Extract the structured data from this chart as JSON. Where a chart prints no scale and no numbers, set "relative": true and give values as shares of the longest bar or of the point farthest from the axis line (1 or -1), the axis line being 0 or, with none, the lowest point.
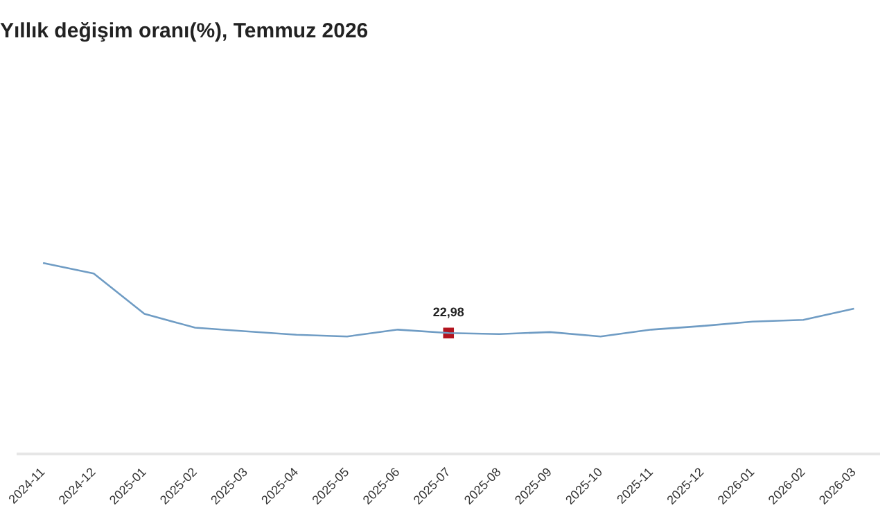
{
  "chart_data": {
    "type": "line",
    "title": "Yıllık değişim oranı(%), Temmuz 2026",
    "relative": true,
    "marker": "none",
    "legend": false,
    "grid": false,
    "categories": [
      "2024-11",
      "2024-12",
      "2025-01",
      "2025-02",
      "2025-03",
      "2025-04",
      "2025-05",
      "2025-06",
      "2025-07",
      "2025-08",
      "2025-09",
      "2025-10",
      "2025-11",
      "2025-12",
      "2026-01",
      "2026-02",
      "2026-03"
    ],
    "series": [
      {
        "color": "#6f9cc4",
        "values": [
          1,
          0.945,
          0.734,
          0.661,
          0.642,
          0.624,
          0.615,
          0.651,
          0.633,
          0.628,
          0.638,
          0.615,
          0.651,
          0.67,
          0.693,
          0.702,
          0.761
        ]
      },
      {
        "type": "scatter",
        "marker": "square",
        "color": "#b3141f",
        "values": [
          null,
          null,
          null,
          null,
          null,
          null,
          null,
          null,
          0.633,
          null,
          null,
          null,
          null,
          null,
          null,
          null,
          null
        ]
      }
    ],
    "annotations": [
      "22,98"
    ]
  }
}
